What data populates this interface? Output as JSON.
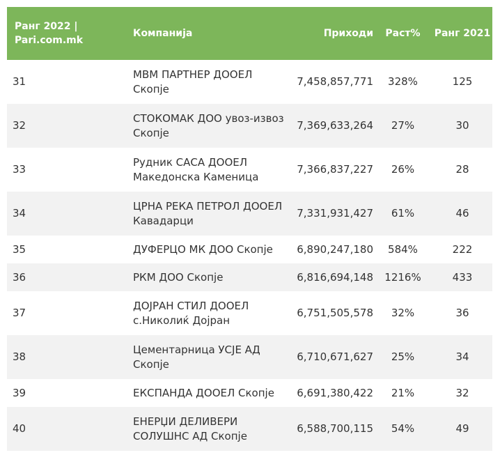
{
  "header": {
    "rank_2022": "Ранг 2022 | Pari.com.mk",
    "company": "Компанија",
    "revenue": "Приходи",
    "growth": "Раст%",
    "rank_2021": "Ранг 2021"
  },
  "rows": [
    {
      "rank": "31",
      "company": "МВМ ПАРТНЕР ДООЕЛ Скопје",
      "revenue": "7,458,857,771",
      "growth": "328%",
      "prev": "125"
    },
    {
      "rank": "32",
      "company": "СТОКОМАК ДОО увоз-извоз Скопје",
      "revenue": "7,369,633,264",
      "growth": "27%",
      "prev": "30"
    },
    {
      "rank": "33",
      "company": "Рудник САСА ДООЕЛ Македонска Каменица",
      "revenue": "7,366,837,227",
      "growth": "26%",
      "prev": "28"
    },
    {
      "rank": "34",
      "company": "ЦРНА РЕКА ПЕТРОЛ ДООЕЛ Кавадарци",
      "revenue": "7,331,931,427",
      "growth": "61%",
      "prev": "46"
    },
    {
      "rank": "35",
      "company": "ДУФЕРЦО МК ДОО Скопје",
      "revenue": "6,890,247,180",
      "growth": "584%",
      "prev": "222"
    },
    {
      "rank": "36",
      "company": "РКМ ДОО Скопје",
      "revenue": "6,816,694,148",
      "growth": "1216%",
      "prev": "433"
    },
    {
      "rank": "37",
      "company": "ДОЈРАН СТИЛ ДООЕЛ с.Николиќ Дојран",
      "revenue": "6,751,505,578",
      "growth": "32%",
      "prev": "36"
    },
    {
      "rank": "38",
      "company": "Цементарница УСЈЕ АД Скопје",
      "revenue": "6,710,671,627",
      "growth": "25%",
      "prev": "34"
    },
    {
      "rank": "39",
      "company": "ЕКСПАНДА ДООЕЛ Скопје",
      "revenue": "6,691,380,422",
      "growth": "21%",
      "prev": "32"
    },
    {
      "rank": "40",
      "company": "ЕНЕРЏИ ДЕЛИВЕРИ СОЛУШНС АД Скопје",
      "revenue": "6,588,700,115",
      "growth": "54%",
      "prev": "49"
    }
  ]
}
